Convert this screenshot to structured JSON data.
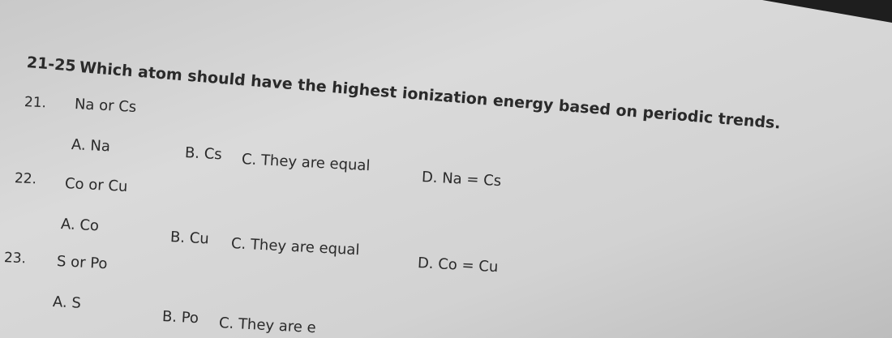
{
  "header": {
    "range": "21-25",
    "title": "Which atom should have the highest ionization energy based on periodic trends."
  },
  "questions": [
    {
      "number": "21.",
      "prompt": "Na or Cs",
      "options": [
        "A. Na",
        "B. Cs",
        "C. They are equal",
        "D. Na = Cs"
      ]
    },
    {
      "number": "22.",
      "prompt": "Co or Cu",
      "options": [
        "A. Co",
        "B. Cu",
        "C. They are equal",
        "D. Co = Cu"
      ]
    },
    {
      "number": "23.",
      "prompt": "S or Po",
      "options": [
        "A. S",
        "B. Po",
        "C. They are e"
      ]
    }
  ]
}
